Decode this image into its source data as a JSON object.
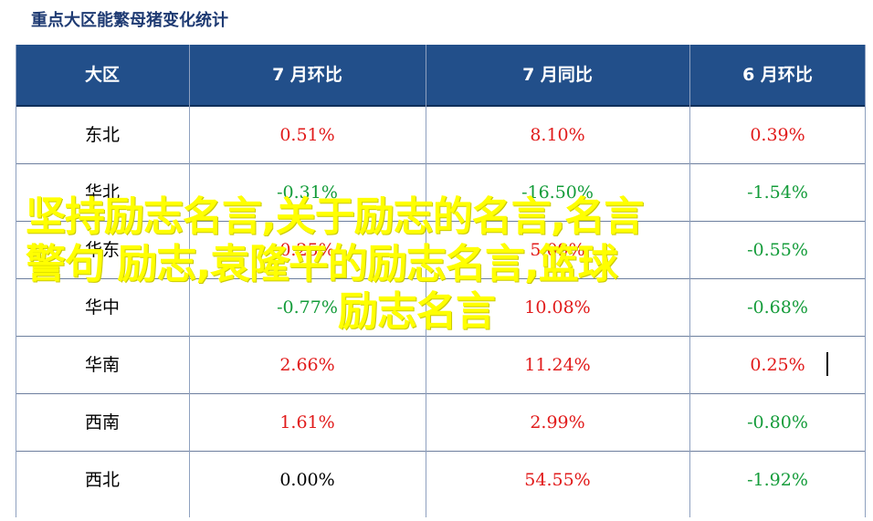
{
  "title": "重点大区能繁母猪变化统计",
  "columns": [
    "大区",
    "7 月环比",
    "7 月同比",
    "6 月环比"
  ],
  "rows": [
    {
      "region": "东北",
      "values": [
        "0.51%",
        "8.10%",
        "0.39%"
      ],
      "signs": [
        "pos",
        "pos",
        "pos"
      ]
    },
    {
      "region": "华北",
      "values": [
        "-0.31%",
        "-16.50%",
        "-1.54%"
      ],
      "signs": [
        "neg",
        "neg",
        "neg"
      ]
    },
    {
      "region": "华东",
      "values": [
        "0.25%",
        "5.09%",
        "-0.55%"
      ],
      "signs": [
        "pos",
        "pos",
        "neg"
      ]
    },
    {
      "region": "华中",
      "values": [
        "-0.77%",
        "10.08%",
        "-0.68%"
      ],
      "signs": [
        "neg",
        "pos",
        "neg"
      ]
    },
    {
      "region": "华南",
      "values": [
        "2.66%",
        "11.24%",
        "0.25%"
      ],
      "signs": [
        "pos",
        "pos",
        "pos"
      ]
    },
    {
      "region": "西南",
      "values": [
        "1.61%",
        "2.99%",
        "-0.80%"
      ],
      "signs": [
        "pos",
        "pos",
        "neg"
      ]
    },
    {
      "region": "西北",
      "values": [
        "0.00%",
        "54.55%",
        "-1.92%"
      ],
      "signs": [
        "zero",
        "pos",
        "neg"
      ]
    }
  ],
  "colors": {
    "header_bg": "#224f8a",
    "positive": "#e11b1b",
    "negative": "#149c3a",
    "overlay": "#ffff00"
  },
  "overlay": {
    "line1": "坚持励志名言,关于励志的名言,名言",
    "line2": "警句 励志,袁隆平的励志名言,篮球",
    "line3": "励志名言"
  }
}
